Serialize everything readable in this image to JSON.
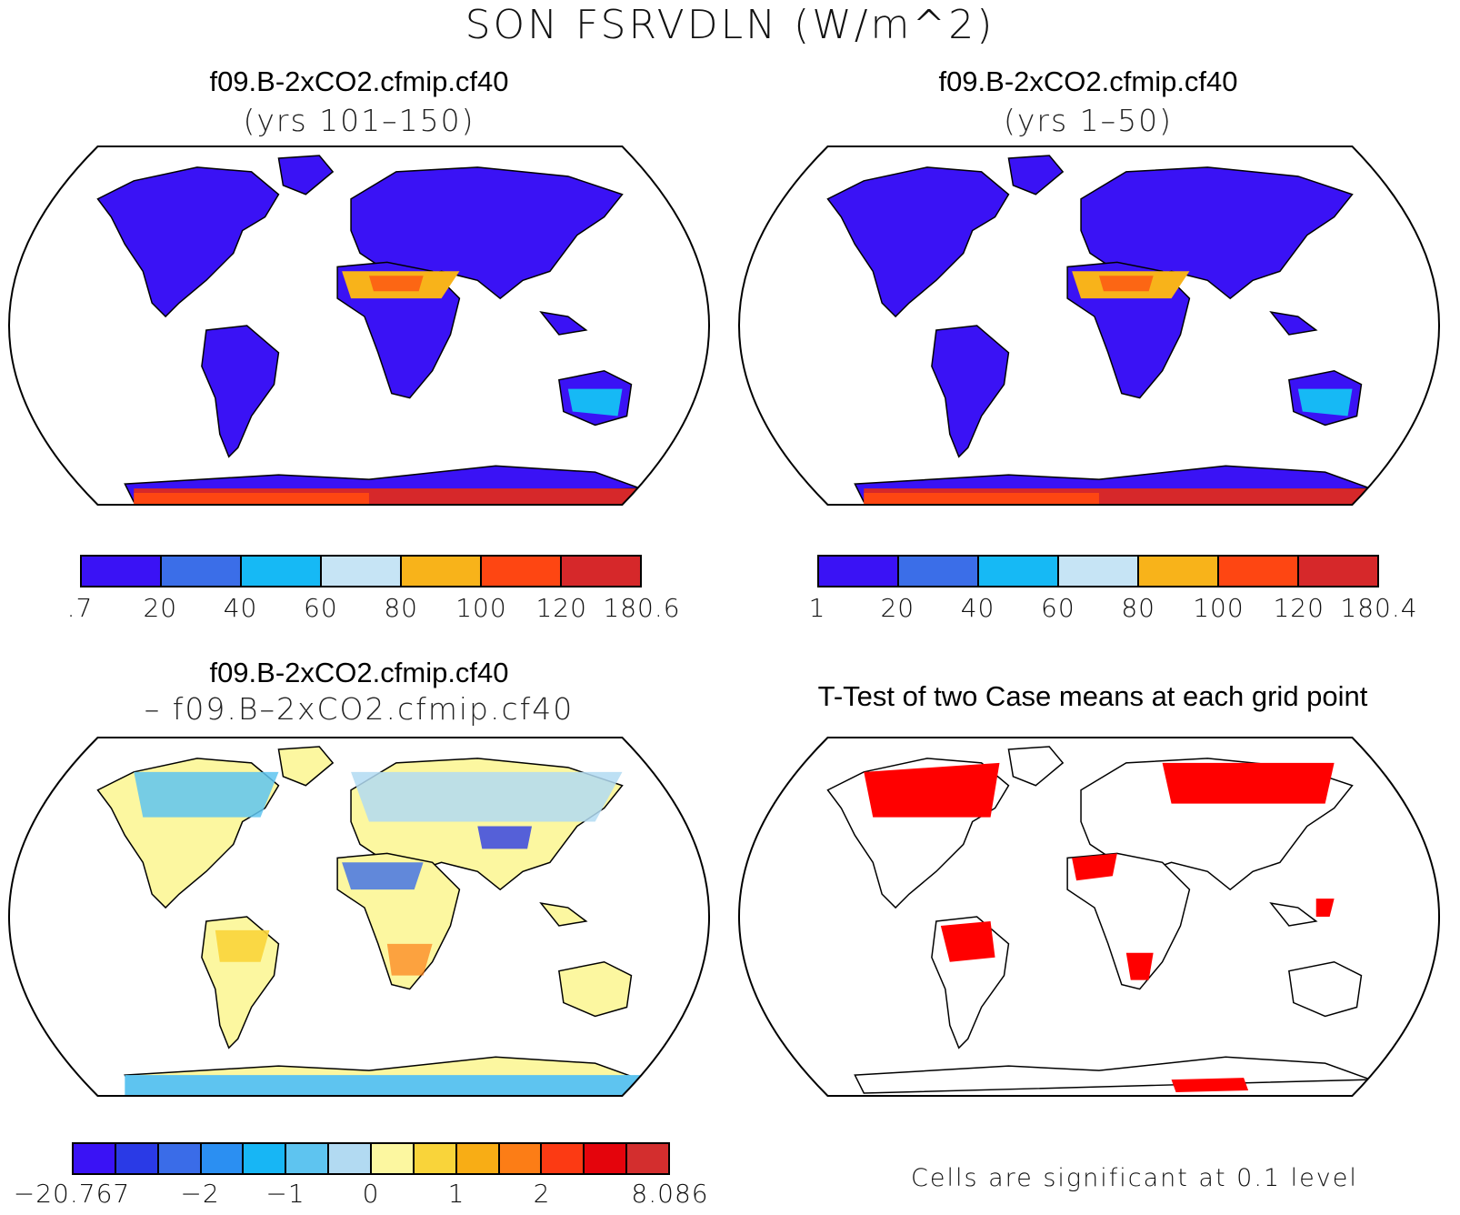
{
  "title": "SON FSRVDLN (W/m^2)",
  "panels": {
    "top_left": {
      "case": "f09.B-2xCO2.cfmip.cf40",
      "period": "(yrs 101–150)"
    },
    "top_right": {
      "case": "f09.B-2xCO2.cfmip.cf40",
      "period": "(yrs 1–50)"
    },
    "bottom_left": {
      "case": "f09.B-2xCO2.cfmip.cf40",
      "minus_case": "– f09.B–2xCO2.cfmip.cf40"
    },
    "bottom_right": {
      "title": "T-Test of two Case means at each grid point",
      "note": "Cells are significant at 0.1 level"
    }
  },
  "colorbar_abs": {
    "colors": [
      "#3a12f5",
      "#3b6ee8",
      "#16b9f5",
      "#c6e4f5",
      "#f8b31a",
      "#fe4612",
      "#d6282a"
    ],
    "ticks_left": [
      ".7",
      "20",
      "40",
      "60",
      "80",
      "100",
      "120",
      "180.6"
    ],
    "ticks_right": [
      "1",
      "20",
      "40",
      "60",
      "80",
      "100",
      "120",
      "180.4"
    ]
  },
  "colorbar_diff": {
    "colors": [
      "#3a12f5",
      "#2a3ae6",
      "#3a6ce8",
      "#2b8ff2",
      "#17b6f5",
      "#5ec4f0",
      "#b2daf2",
      "#fcf7a0",
      "#f9d43a",
      "#f8ad15",
      "#fc7d16",
      "#fc3a13",
      "#e4040c",
      "#d32e2e"
    ],
    "ticks": [
      "−20.767",
      "−2",
      "−1",
      "0",
      "1",
      "2",
      "8.086"
    ]
  },
  "significance_color": "#ff0000",
  "land_outline_color": "#000000"
}
